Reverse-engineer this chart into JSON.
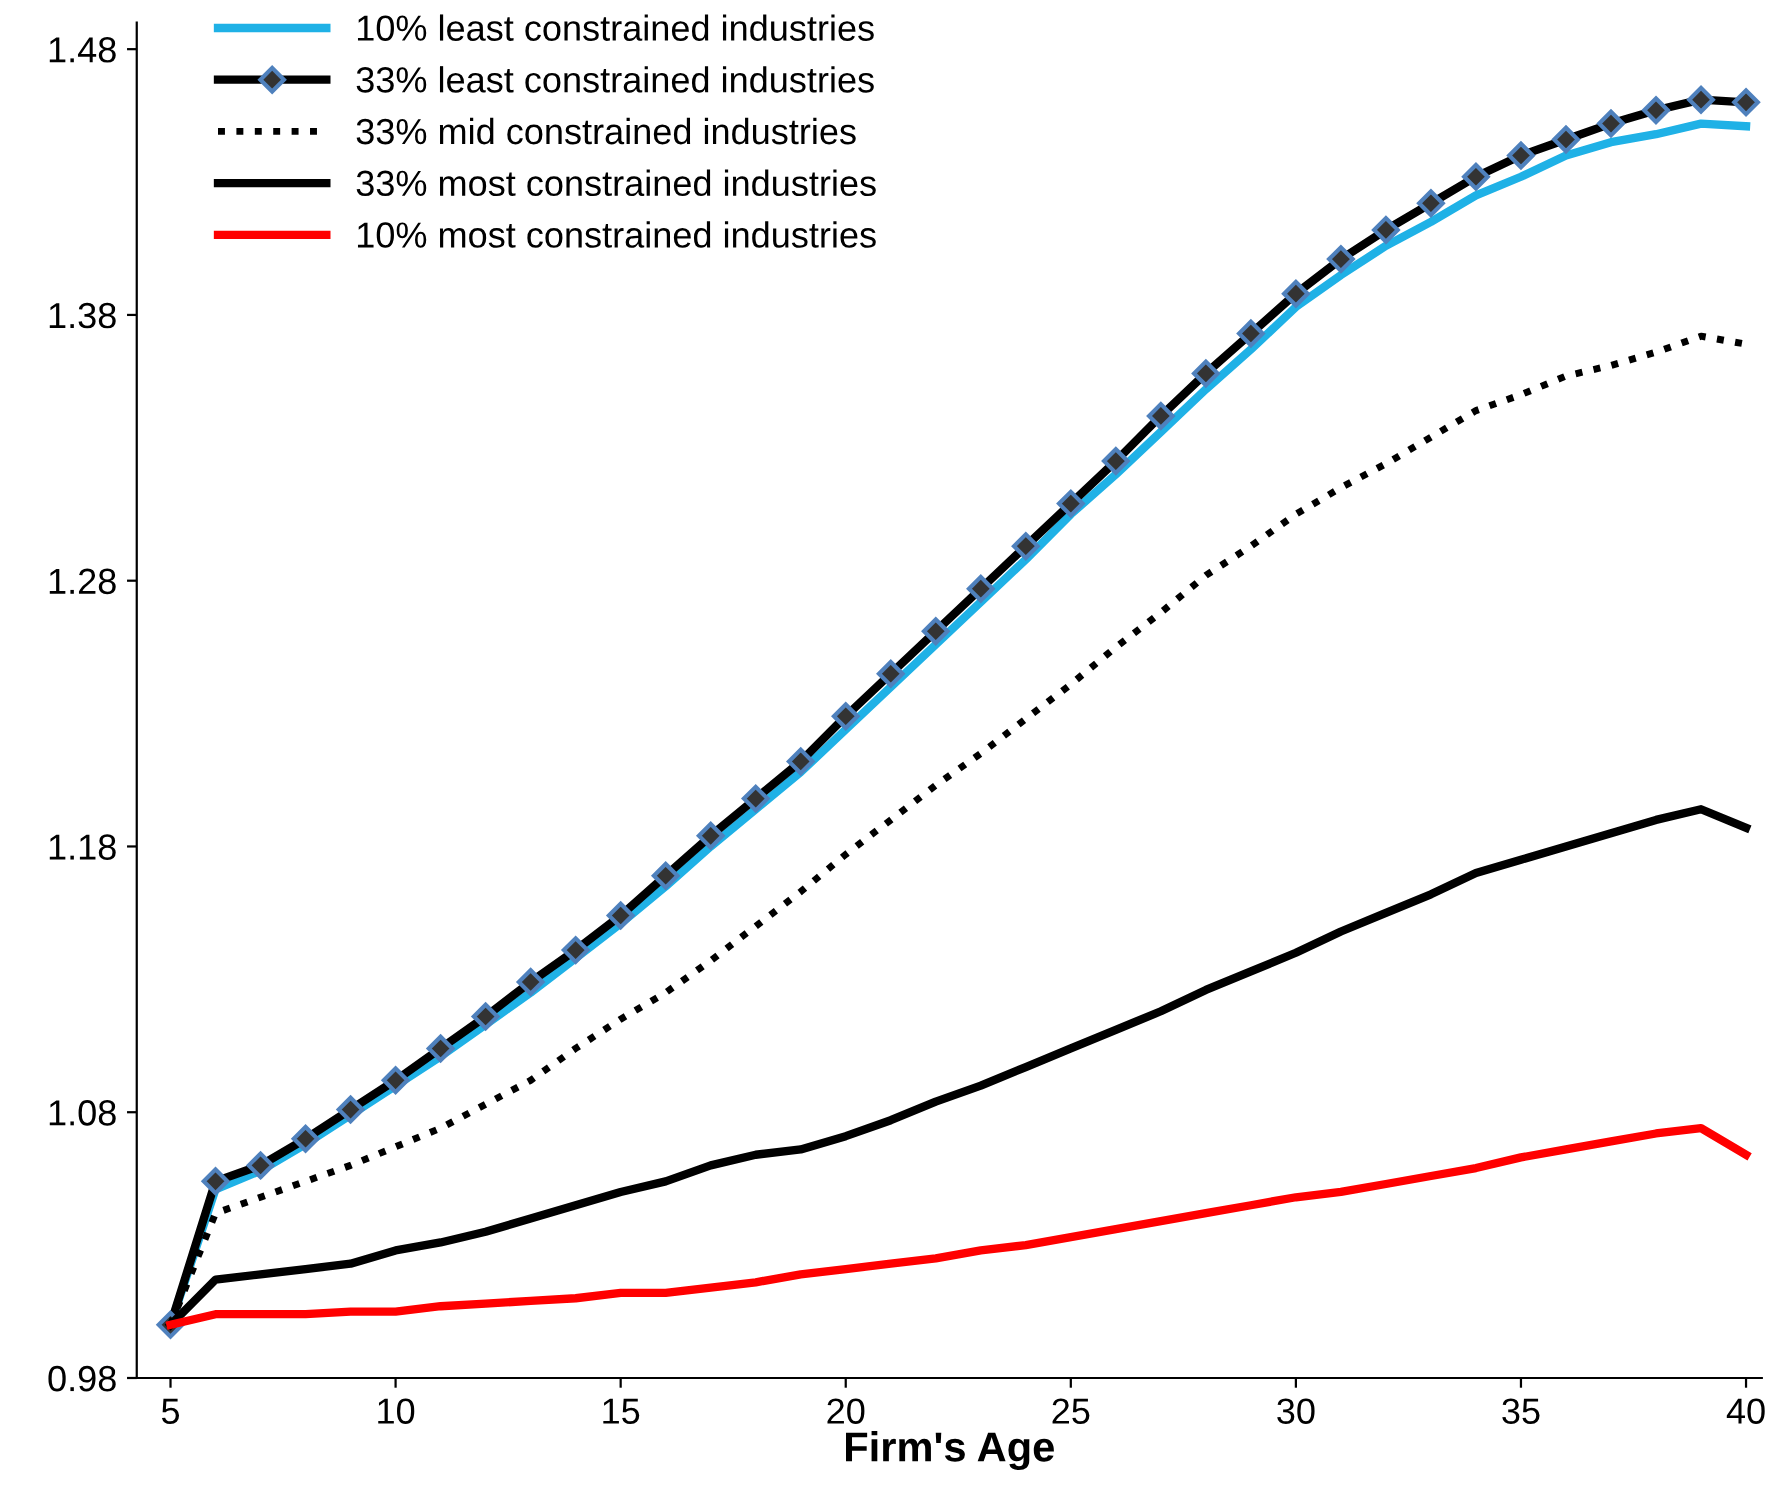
{
  "chart_data": {
    "type": "line",
    "xlabel": "Firm's Age",
    "x": [
      5,
      6,
      7,
      8,
      9,
      10,
      11,
      12,
      13,
      14,
      15,
      16,
      17,
      18,
      19,
      20,
      21,
      22,
      23,
      24,
      25,
      26,
      27,
      28,
      29,
      30,
      31,
      32,
      33,
      34,
      35,
      36,
      37,
      38,
      39,
      40
    ],
    "xlim": [
      4.25,
      40.35
    ],
    "xticks": [
      5,
      10,
      15,
      20,
      25,
      30,
      35,
      40
    ],
    "ylim": [
      0.98,
      1.49
    ],
    "yticks": [
      0.98,
      1.08,
      1.18,
      1.28,
      1.38,
      1.48
    ],
    "grid": false,
    "legend": "top left",
    "series": [
      {
        "name": "10% least constrained industries",
        "color": "#1fb1e6",
        "line_style": "solid",
        "marker": "none",
        "values": [
          1.0,
          1.051,
          1.058,
          1.068,
          1.079,
          1.09,
          1.101,
          1.113,
          1.125,
          1.138,
          1.151,
          1.165,
          1.18,
          1.194,
          1.208,
          1.224,
          1.24,
          1.256,
          1.272,
          1.288,
          1.305,
          1.32,
          1.336,
          1.352,
          1.367,
          1.383,
          1.395,
          1.406,
          1.415,
          1.425,
          1.432,
          1.44,
          1.445,
          1.448,
          1.452,
          1.451
        ]
      },
      {
        "name": "33% least constrained industries",
        "color": "#000000",
        "line_style": "solid",
        "marker": "diamond",
        "values": [
          1.0,
          1.054,
          1.06,
          1.07,
          1.081,
          1.092,
          1.104,
          1.116,
          1.129,
          1.141,
          1.154,
          1.169,
          1.184,
          1.198,
          1.212,
          1.229,
          1.245,
          1.261,
          1.277,
          1.293,
          1.309,
          1.325,
          1.342,
          1.358,
          1.373,
          1.388,
          1.401,
          1.412,
          1.422,
          1.432,
          1.44,
          1.446,
          1.452,
          1.457,
          1.461,
          1.46
        ]
      },
      {
        "name": "33% mid constrained industries",
        "color": "#000000",
        "line_style": "dotted",
        "marker": "none",
        "values": [
          1.0,
          1.042,
          1.048,
          1.054,
          1.06,
          1.067,
          1.074,
          1.083,
          1.092,
          1.104,
          1.115,
          1.125,
          1.137,
          1.15,
          1.163,
          1.177,
          1.19,
          1.203,
          1.215,
          1.228,
          1.241,
          1.255,
          1.268,
          1.282,
          1.293,
          1.305,
          1.315,
          1.324,
          1.334,
          1.344,
          1.35,
          1.357,
          1.361,
          1.366,
          1.372,
          1.369
        ]
      },
      {
        "name": "33% most constrained industries",
        "color": "#000000",
        "line_style": "solid",
        "marker": "none",
        "values": [
          1.0,
          1.017,
          1.019,
          1.021,
          1.023,
          1.028,
          1.031,
          1.035,
          1.04,
          1.045,
          1.05,
          1.054,
          1.06,
          1.064,
          1.066,
          1.071,
          1.077,
          1.084,
          1.09,
          1.097,
          1.104,
          1.111,
          1.118,
          1.126,
          1.133,
          1.14,
          1.148,
          1.155,
          1.162,
          1.17,
          1.175,
          1.18,
          1.185,
          1.19,
          1.194,
          1.187
        ]
      },
      {
        "name": "10% most constrained industries",
        "color": "#ff0000",
        "line_style": "solid",
        "marker": "none",
        "values": [
          1.0,
          1.004,
          1.004,
          1.004,
          1.005,
          1.005,
          1.007,
          1.008,
          1.009,
          1.01,
          1.012,
          1.012,
          1.014,
          1.016,
          1.019,
          1.021,
          1.023,
          1.025,
          1.028,
          1.03,
          1.033,
          1.036,
          1.039,
          1.042,
          1.045,
          1.048,
          1.05,
          1.053,
          1.056,
          1.059,
          1.063,
          1.066,
          1.069,
          1.072,
          1.074,
          1.064
        ]
      }
    ]
  }
}
